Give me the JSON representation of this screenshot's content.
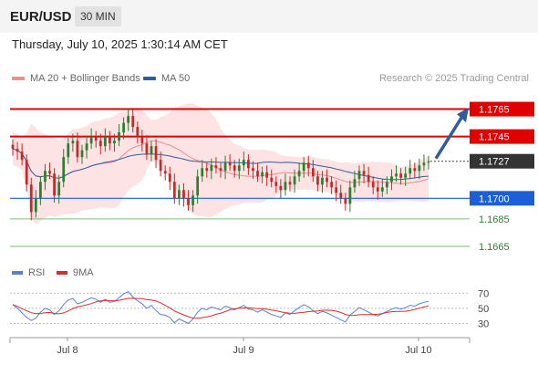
{
  "header": {
    "symbol": "EUR/USD",
    "timeframe": "30 MIN"
  },
  "datetime": "Thursday, July 10, 2025 1:30:14 AM CET",
  "legend": [
    {
      "label": "MA 20 + Bollinger Bands",
      "color": "#f08c8c"
    },
    {
      "label": "MA 50",
      "color": "#2f5c9c"
    }
  ],
  "credit": "Research © 2025 Trading Central",
  "colors": {
    "up": "#2e7d32",
    "down": "#c62828",
    "resistance": "#e00000",
    "support": "#1a5fd8",
    "minor_support": "#7bbf7b",
    "arrow": "#2f5c9c"
  },
  "chart_data": {
    "type": "candlestick",
    "instrument": "EUR/USD",
    "ylim": [
      1.1655,
      1.178
    ],
    "x_ticks": [
      "Jul 8",
      "Jul 9",
      "Jul 10"
    ],
    "last_price": "1.1727",
    "levels": [
      {
        "value": 1.1765,
        "label": "1.1765",
        "kind": "resistance",
        "tag": true
      },
      {
        "value": 1.1745,
        "label": "1.1745",
        "kind": "resistance",
        "tag": true
      },
      {
        "value": 1.1727,
        "label": "1.1727",
        "kind": "last",
        "tag": true
      },
      {
        "value": 1.17,
        "label": "1.1700",
        "kind": "support",
        "tag": true
      },
      {
        "value": 1.1685,
        "label": "1.1685",
        "kind": "minor_support",
        "tag": false
      },
      {
        "value": 1.1665,
        "label": "1.1665",
        "kind": "minor_support",
        "tag": false
      }
    ],
    "closes": [
      1.1736,
      1.1734,
      1.1728,
      1.171,
      1.169,
      1.17,
      1.1712,
      1.172,
      1.1718,
      1.1702,
      1.1712,
      1.173,
      1.174,
      1.1742,
      1.173,
      1.1735,
      1.174,
      1.1745,
      1.1742,
      1.1738,
      1.1745,
      1.174,
      1.1742,
      1.1748,
      1.1755,
      1.176,
      1.1752,
      1.1745,
      1.174,
      1.1732,
      1.1738,
      1.1728,
      1.172,
      1.1718,
      1.1712,
      1.17,
      1.1706,
      1.17,
      1.1695,
      1.1702,
      1.1716,
      1.1722,
      1.172,
      1.1724,
      1.1722,
      1.172,
      1.1726,
      1.1724,
      1.172,
      1.1724,
      1.1728,
      1.1722,
      1.172,
      1.1716,
      1.1719,
      1.1715,
      1.1712,
      1.1709,
      1.1706,
      1.1712,
      1.171,
      1.1716,
      1.172,
      1.1726,
      1.1722,
      1.1716,
      1.171,
      1.1715,
      1.1712,
      1.1708,
      1.1704,
      1.17,
      1.1696,
      1.1708,
      1.1714,
      1.172,
      1.1717,
      1.1712,
      1.1708,
      1.1705,
      1.1708,
      1.1712,
      1.1716,
      1.1718,
      1.1715,
      1.1718,
      1.1722,
      1.172,
      1.1724,
      1.1726,
      1.1727
    ],
    "rsi": {
      "name": "RSI",
      "ma_name": "9MA",
      "ylim": [
        15,
        80
      ],
      "levels": [
        70,
        50,
        30
      ],
      "values": [
        55,
        50,
        44,
        38,
        34,
        37,
        45,
        50,
        48,
        42,
        47,
        55,
        61,
        63,
        56,
        58,
        61,
        64,
        62,
        58,
        62,
        58,
        59,
        64,
        69,
        72,
        65,
        60,
        56,
        50,
        54,
        47,
        42,
        41,
        38,
        31,
        36,
        33,
        30,
        36,
        45,
        50,
        48,
        52,
        50,
        48,
        53,
        51,
        48,
        51,
        54,
        49,
        48,
        45,
        48,
        45,
        42,
        40,
        38,
        44,
        42,
        47,
        51,
        55,
        52,
        47,
        43,
        46,
        44,
        41,
        38,
        35,
        32,
        41,
        46,
        51,
        48,
        45,
        42,
        40,
        43,
        46,
        49,
        51,
        49,
        51,
        54,
        53,
        56,
        58,
        59
      ]
    }
  }
}
